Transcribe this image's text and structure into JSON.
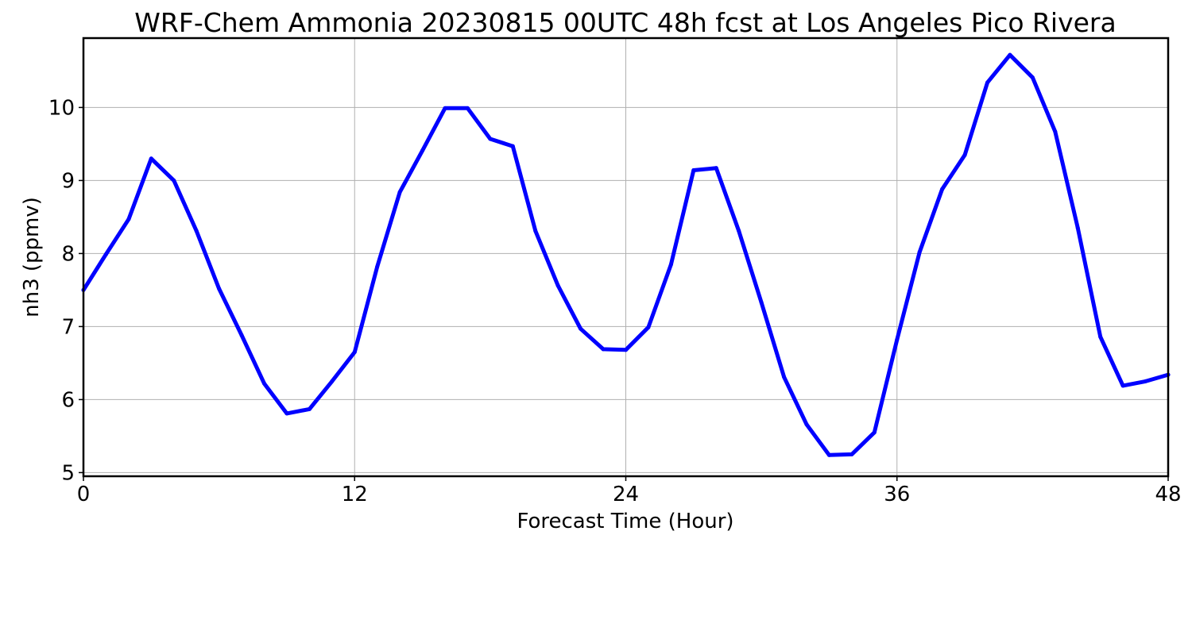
{
  "chart_data": {
    "type": "line",
    "title": "WRF-Chem Ammonia  20230815 00UTC 48h fcst at Los Angeles Pico Rivera",
    "xlabel": "Forecast Time (Hour)",
    "ylabel": "nh3  (ppmv)",
    "xlim": [
      0,
      48
    ],
    "ylim": [
      4.95,
      10.95
    ],
    "xticks": [
      0,
      12,
      24,
      36,
      48
    ],
    "yticks": [
      5,
      6,
      7,
      8,
      9,
      10
    ],
    "grid": true,
    "series": [
      {
        "color": "#0000ff",
        "x": [
          0,
          1,
          2,
          3,
          4,
          5,
          6,
          7,
          8,
          9,
          10,
          11,
          12,
          13,
          14,
          15,
          16,
          17,
          18,
          19,
          20,
          21,
          22,
          23,
          24,
          25,
          26,
          27,
          28,
          29,
          30,
          31,
          32,
          33,
          34,
          35,
          36,
          37,
          38,
          39,
          40,
          41,
          42,
          43,
          44,
          45,
          46,
          47,
          48
        ],
        "values": [
          7.5,
          7.99,
          8.47,
          9.3,
          9.0,
          8.31,
          7.52,
          6.88,
          6.22,
          5.81,
          5.87,
          6.25,
          6.65,
          7.82,
          8.84,
          9.41,
          9.99,
          9.99,
          9.57,
          9.47,
          8.31,
          7.56,
          6.97,
          6.69,
          6.68,
          6.99,
          7.85,
          9.14,
          9.17,
          8.31,
          7.33,
          6.31,
          5.66,
          5.24,
          5.25,
          5.55,
          6.82,
          8.02,
          8.88,
          9.35,
          10.34,
          10.72,
          10.41,
          9.67,
          8.35,
          6.86,
          6.19,
          6.25,
          6.34
        ]
      }
    ]
  }
}
